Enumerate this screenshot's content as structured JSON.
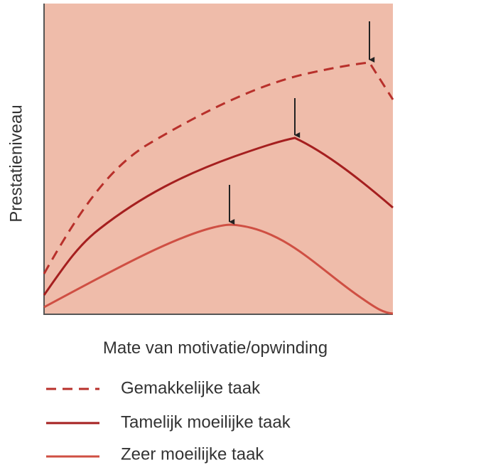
{
  "y_axis_label": "Prestatieniveau",
  "x_axis_label": "Mate van motivatie/opwinding",
  "legend": [
    "Gemakkelijke taak",
    "Tamelijk moeilijke taak",
    "Zeer moeilijke taak"
  ]
}
